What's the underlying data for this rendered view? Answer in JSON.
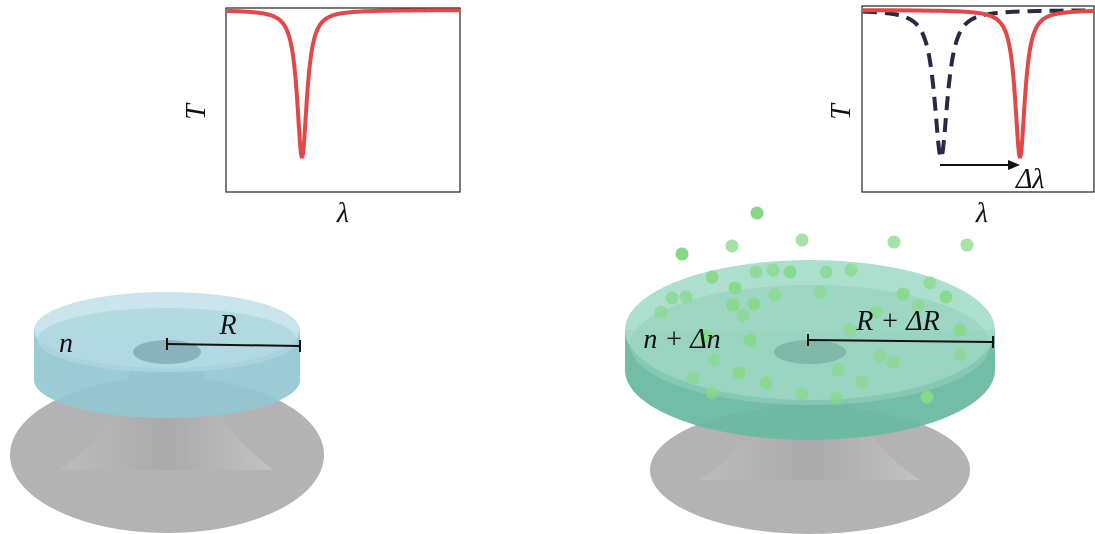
{
  "left": {
    "plot": {
      "y_label": "T",
      "x_label": "λ"
    },
    "disk": {
      "index_label": "n",
      "radius_label": "R"
    }
  },
  "right": {
    "plot": {
      "y_label": "T",
      "x_label": "λ",
      "shift_label": "Δλ"
    },
    "disk": {
      "index_label": "n + Δn",
      "radius_label": "R + ΔR"
    }
  }
}
